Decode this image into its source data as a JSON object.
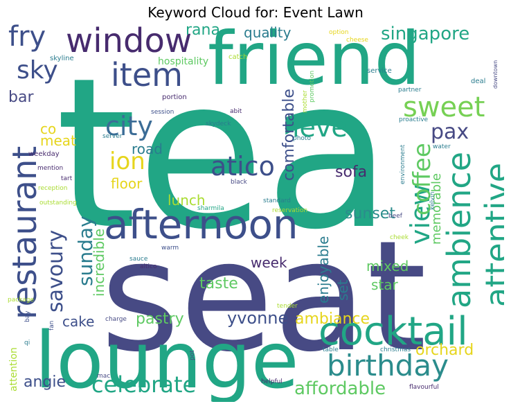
{
  "title": "Keyword Cloud for: Event Lawn",
  "palette": {
    "green": "#21a685",
    "teal": "#2b8c8c",
    "blue": "#3d4f8a",
    "navy": "#474a84",
    "purple": "#472b6e",
    "lime": "#5ec962",
    "yellowgreen": "#aadc32",
    "yellow": "#e6d51c",
    "steel": "#3b6c96",
    "sea": "#2a7c8e",
    "lightgreen": "#76d054"
  },
  "words": [
    {
      "text": "tea",
      "color": "green"
    },
    {
      "text": "seat",
      "color": "navy"
    },
    {
      "text": "lounge",
      "color": "green"
    },
    {
      "text": "friend",
      "color": "green"
    },
    {
      "text": "afternoon",
      "color": "blue"
    },
    {
      "text": "window",
      "color": "purple"
    },
    {
      "text": "restaurant",
      "color": "blue"
    },
    {
      "text": "cocktail",
      "color": "green"
    },
    {
      "text": "item",
      "color": "blue"
    },
    {
      "text": "ambience",
      "color": "green"
    },
    {
      "text": "attentive",
      "color": "green"
    },
    {
      "text": "birthday",
      "color": "teal"
    },
    {
      "text": "sweet",
      "color": "lightgreen"
    },
    {
      "text": "atico",
      "color": "blue"
    },
    {
      "text": "view",
      "color": "green"
    },
    {
      "text": "coffee",
      "color": "lime"
    },
    {
      "text": "city",
      "color": "steel"
    },
    {
      "text": "level",
      "color": "green"
    },
    {
      "text": "ion",
      "color": "yellow"
    },
    {
      "text": "fry",
      "color": "blue"
    },
    {
      "text": "sky",
      "color": "blue"
    },
    {
      "text": "savoury",
      "color": "blue"
    },
    {
      "text": "celebrate",
      "color": "green"
    },
    {
      "text": "singapore",
      "color": "green"
    },
    {
      "text": "pax",
      "color": "navy"
    },
    {
      "text": "sunday",
      "color": "sea"
    },
    {
      "text": "affordable",
      "color": "lime"
    },
    {
      "text": "orchard",
      "color": "yellow"
    },
    {
      "text": "pastry",
      "color": "lime"
    },
    {
      "text": "yvonne",
      "color": "blue"
    },
    {
      "text": "ambiance",
      "color": "yellow"
    },
    {
      "text": "angie",
      "color": "blue"
    },
    {
      "text": "cake",
      "color": "blue"
    },
    {
      "text": "sunset",
      "color": "teal"
    },
    {
      "text": "sofa",
      "color": "purple"
    },
    {
      "text": "road",
      "color": "sea"
    },
    {
      "text": "floor",
      "color": "yellow"
    },
    {
      "text": "lunch",
      "color": "yellowgreen"
    },
    {
      "text": "taste",
      "color": "lime"
    },
    {
      "text": "week",
      "color": "purple"
    },
    {
      "text": "comfortable",
      "color": "blue"
    },
    {
      "text": "incredible",
      "color": "lime"
    },
    {
      "text": "enjoyable",
      "color": "sea"
    },
    {
      "text": "memorable",
      "color": "lime"
    },
    {
      "text": "mixed",
      "color": "lime"
    },
    {
      "text": "star",
      "color": "lime"
    },
    {
      "text": "set",
      "color": "sea"
    },
    {
      "text": "quality",
      "color": "sea"
    },
    {
      "text": "rana",
      "color": "green"
    },
    {
      "text": "bar",
      "color": "navy"
    },
    {
      "text": "co",
      "color": "yellow"
    },
    {
      "text": "meat",
      "color": "yellow"
    },
    {
      "text": "hospitality",
      "color": "lime"
    },
    {
      "text": "attention",
      "color": "yellowgreen"
    },
    {
      "text": "skyline",
      "color": "sea"
    },
    {
      "text": "catch",
      "color": "yellowgreen"
    },
    {
      "text": "option",
      "color": "yellow"
    },
    {
      "text": "cheese",
      "color": "yellow"
    },
    {
      "text": "deal",
      "color": "sea"
    },
    {
      "text": "service",
      "color": "sea"
    },
    {
      "text": "downtown",
      "color": "navy"
    },
    {
      "text": "partner",
      "color": "sea"
    },
    {
      "text": "promotion",
      "color": "lime"
    },
    {
      "text": "mother",
      "color": "yellowgreen"
    },
    {
      "text": "portion",
      "color": "purple"
    },
    {
      "text": "session",
      "color": "blue"
    },
    {
      "text": "abit",
      "color": "purple"
    },
    {
      "text": "skydeck",
      "color": "sea"
    },
    {
      "text": "proactive",
      "color": "sea"
    },
    {
      "text": "server",
      "color": "sea"
    },
    {
      "text": "photo",
      "color": "sea"
    },
    {
      "text": "environment",
      "color": "sea"
    },
    {
      "text": "water",
      "color": "sea"
    },
    {
      "text": "weekday",
      "color": "purple"
    },
    {
      "text": "mention",
      "color": "purple"
    },
    {
      "text": "tart",
      "color": "purple"
    },
    {
      "text": "reception",
      "color": "yellowgreen"
    },
    {
      "text": "black",
      "color": "navy"
    },
    {
      "text": "standard",
      "color": "sea"
    },
    {
      "text": "kelvin",
      "color": "sea"
    },
    {
      "text": "outstanding",
      "color": "yellowgreen"
    },
    {
      "text": "sharmila",
      "color": "green"
    },
    {
      "text": "reservation",
      "color": "yellowgreen"
    },
    {
      "text": "beef",
      "color": "navy"
    },
    {
      "text": "warm",
      "color": "blue"
    },
    {
      "text": "cheek",
      "color": "yellowgreen"
    },
    {
      "text": "sauce",
      "color": "sea"
    },
    {
      "text": "altico",
      "color": "purple"
    },
    {
      "text": "package",
      "color": "yellowgreen"
    },
    {
      "text": "charge",
      "color": "navy"
    },
    {
      "text": "tender",
      "color": "yellowgreen"
    },
    {
      "text": "bay",
      "color": "blue"
    },
    {
      "text": "fan",
      "color": "blue"
    },
    {
      "text": "qi",
      "color": "sea"
    },
    {
      "text": "pot",
      "color": "navy"
    },
    {
      "text": "table",
      "color": "sea"
    },
    {
      "text": "christmas",
      "color": "sea"
    },
    {
      "text": "mac",
      "color": "navy"
    },
    {
      "text": "helpful",
      "color": "purple"
    },
    {
      "text": "flavourful",
      "color": "purple"
    }
  ]
}
